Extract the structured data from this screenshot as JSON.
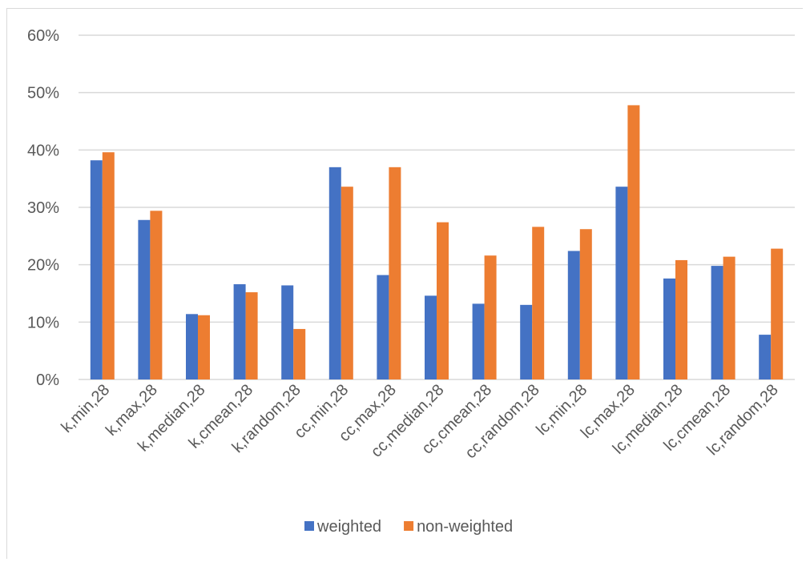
{
  "chart_data": {
    "type": "bar",
    "title": "",
    "xlabel": "",
    "ylabel": "",
    "ylim": [
      0,
      60
    ],
    "ytick_step": 10,
    "ytick_format": "percent",
    "grid": true,
    "legend_position": "bottom",
    "categories": [
      "k,min,28",
      "k,max,28",
      "k,median,28",
      "k,cmean,28",
      "k,random,28",
      "cc,min,28",
      "cc,max,28",
      "cc,median,28",
      "cc,cmean,28",
      "cc,random,28",
      "lc,min,28",
      "lc,max,28",
      "lc,median,28",
      "lc,cmean,28",
      "lc,random,28"
    ],
    "series": [
      {
        "name": "weighted",
        "color": "#4472c4",
        "values": [
          38.2,
          27.8,
          11.4,
          16.6,
          16.4,
          37.0,
          18.2,
          14.6,
          13.2,
          13.0,
          22.4,
          33.6,
          17.6,
          19.8,
          7.8
        ]
      },
      {
        "name": "non-weighted",
        "color": "#ed7d31",
        "values": [
          39.6,
          29.4,
          11.2,
          15.2,
          8.8,
          33.6,
          37.0,
          27.4,
          21.6,
          26.6,
          26.2,
          47.8,
          20.8,
          21.4,
          22.8
        ]
      }
    ]
  }
}
